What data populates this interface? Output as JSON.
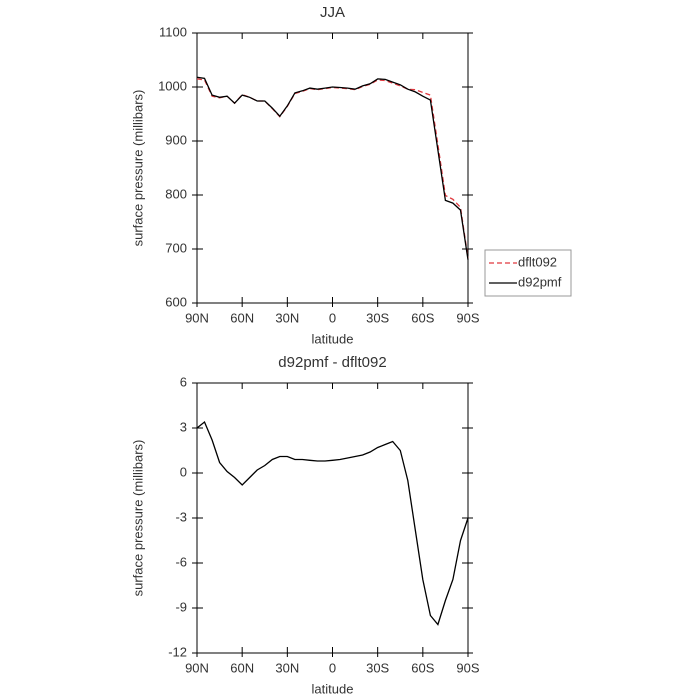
{
  "chart_data": [
    {
      "type": "line",
      "title": "JJA",
      "xlabel": "latitude",
      "ylabel": "surface pressure (millibars)",
      "x": [
        90,
        85,
        80,
        75,
        70,
        65,
        60,
        55,
        50,
        45,
        40,
        35,
        30,
        25,
        20,
        15,
        10,
        5,
        0,
        -5,
        -10,
        -15,
        -20,
        -25,
        -30,
        -35,
        -40,
        -45,
        -50,
        -55,
        -60,
        -65,
        -70,
        -75,
        -80,
        -85,
        -90
      ],
      "series": [
        {
          "name": "dflt092",
          "color": "#e0383e",
          "linestyle": "dashed",
          "values": [
            1015,
            1013,
            983,
            980,
            983,
            970,
            986,
            981,
            974,
            974,
            960,
            945,
            964,
            988,
            992,
            997,
            995,
            997,
            999,
            998,
            997,
            995,
            1001,
            1005,
            1013,
            1012,
            1007,
            1002,
            996,
            995,
            990,
            985,
            893,
            799,
            792,
            777,
            683
          ]
        },
        {
          "name": "d92pmf",
          "color": "#000000",
          "linestyle": "solid",
          "values": [
            1018,
            1016,
            985,
            981,
            983,
            970,
            985,
            981,
            974,
            974,
            961,
            946,
            965,
            989,
            993,
            998,
            996,
            998,
            1000,
            999,
            998,
            996,
            1002,
            1006,
            1015,
            1014,
            1009,
            1004,
            996,
            991,
            983,
            976,
            883,
            790,
            785,
            772,
            680
          ]
        }
      ],
      "xlim": [
        90,
        -90
      ],
      "xticks": [
        {
          "value": 90,
          "label": "90N"
        },
        {
          "value": 60,
          "label": "60N"
        },
        {
          "value": 30,
          "label": "30N"
        },
        0,
        {
          "value": -30,
          "label": "30S"
        },
        {
          "value": -60,
          "label": "60S"
        },
        {
          "value": -90,
          "label": "90S"
        }
      ],
      "ylim": [
        600,
        1100
      ],
      "yticks": [
        600,
        700,
        800,
        900,
        1000,
        1100
      ],
      "legend": "right"
    },
    {
      "type": "line",
      "title": "d92pmf - dflt092",
      "xlabel": "latitude",
      "ylabel": "surface pressure (millibars)",
      "x": [
        90,
        85,
        80,
        75,
        70,
        65,
        60,
        55,
        50,
        45,
        40,
        35,
        30,
        25,
        20,
        15,
        10,
        5,
        0,
        -5,
        -10,
        -15,
        -20,
        -25,
        -30,
        -35,
        -40,
        -45,
        -50,
        -55,
        -60,
        -65,
        -70,
        -75,
        -80,
        -85,
        -90
      ],
      "series": [
        {
          "color": "#000000",
          "linestyle": "solid",
          "values": [
            3.0,
            3.4,
            2.2,
            0.7,
            0.1,
            -0.3,
            -0.8,
            -0.3,
            0.2,
            0.5,
            0.9,
            1.1,
            1.1,
            0.9,
            0.9,
            0.85,
            0.8,
            0.8,
            0.85,
            0.9,
            1.0,
            1.1,
            1.2,
            1.4,
            1.7,
            1.9,
            2.1,
            1.5,
            -0.5,
            -3.8,
            -7.1,
            -9.5,
            -10.1,
            -8.5,
            -7.1,
            -4.5,
            -3.0
          ]
        }
      ],
      "xlim": [
        90,
        -90
      ],
      "xticks": [
        {
          "value": 90,
          "label": "90N"
        },
        {
          "value": 60,
          "label": "60N"
        },
        {
          "value": 30,
          "label": "30N"
        },
        0,
        {
          "value": -30,
          "label": "30S"
        },
        {
          "value": -60,
          "label": "60S"
        },
        {
          "value": -90,
          "label": "90S"
        }
      ],
      "ylim": [
        -12,
        6
      ],
      "yticks": [
        -12,
        -9,
        -6,
        -3,
        0,
        3,
        6
      ]
    }
  ]
}
